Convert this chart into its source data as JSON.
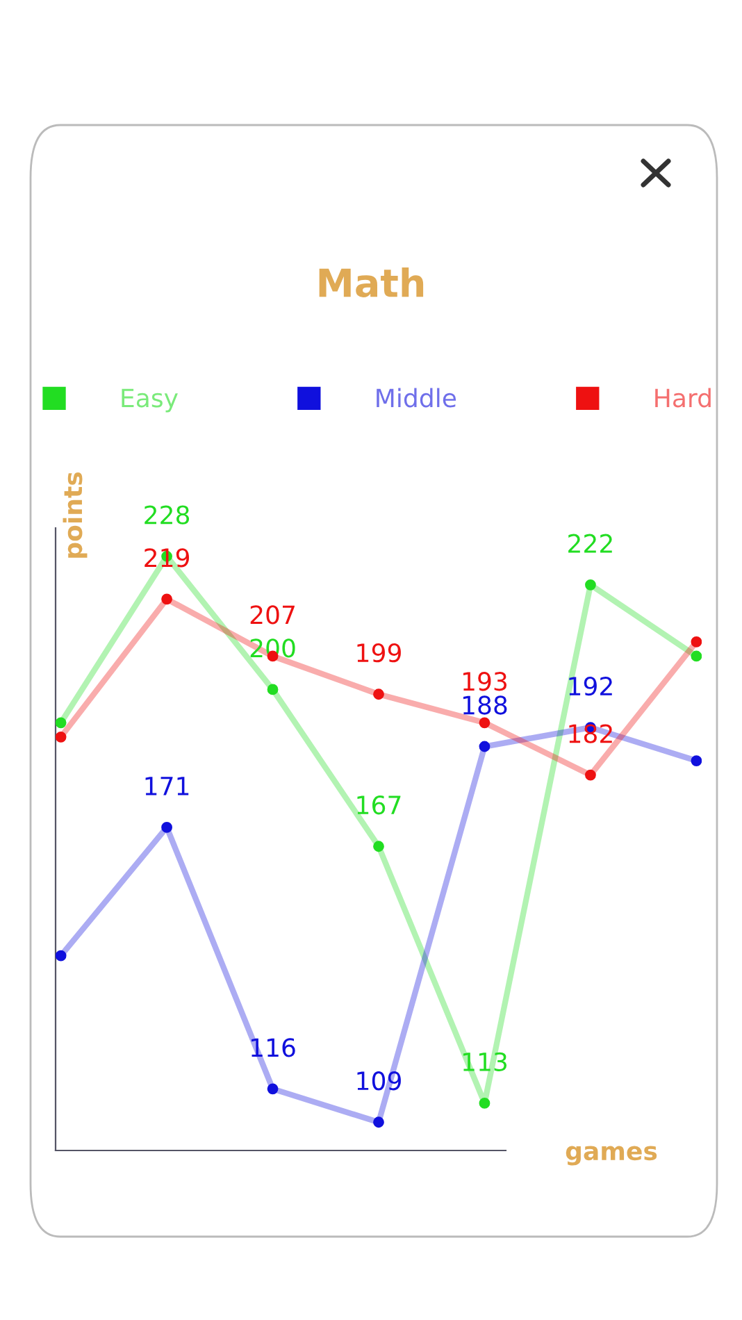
{
  "chart_data": {
    "type": "line",
    "title": "Math",
    "xlabel": "games",
    "ylabel": "points",
    "categories": [
      null,
      null,
      null,
      null,
      null,
      null,
      null
    ],
    "series": [
      {
        "name": "Easy",
        "color": "#22dd22",
        "values": [
          193,
          228,
          200,
          167,
          113,
          222,
          207
        ],
        "value_labels": [
          null,
          "228",
          "200",
          "167",
          "113",
          "222",
          null
        ]
      },
      {
        "name": "Middle",
        "color": "#1010dd",
        "values": [
          144,
          171,
          116,
          109,
          188,
          192,
          185
        ],
        "value_labels": [
          null,
          "171",
          "116",
          "109",
          "188",
          "192",
          null
        ]
      },
      {
        "name": "Hard",
        "color": "#ee1111",
        "values": [
          190,
          219,
          207,
          199,
          193,
          182,
          210
        ],
        "value_labels": [
          null,
          "219",
          "207",
          "199",
          "193",
          "182",
          null
        ]
      }
    ],
    "legend": "top",
    "marker": "circle",
    "line_style": "solid",
    "grid": false,
    "tick_labels": false
  }
}
